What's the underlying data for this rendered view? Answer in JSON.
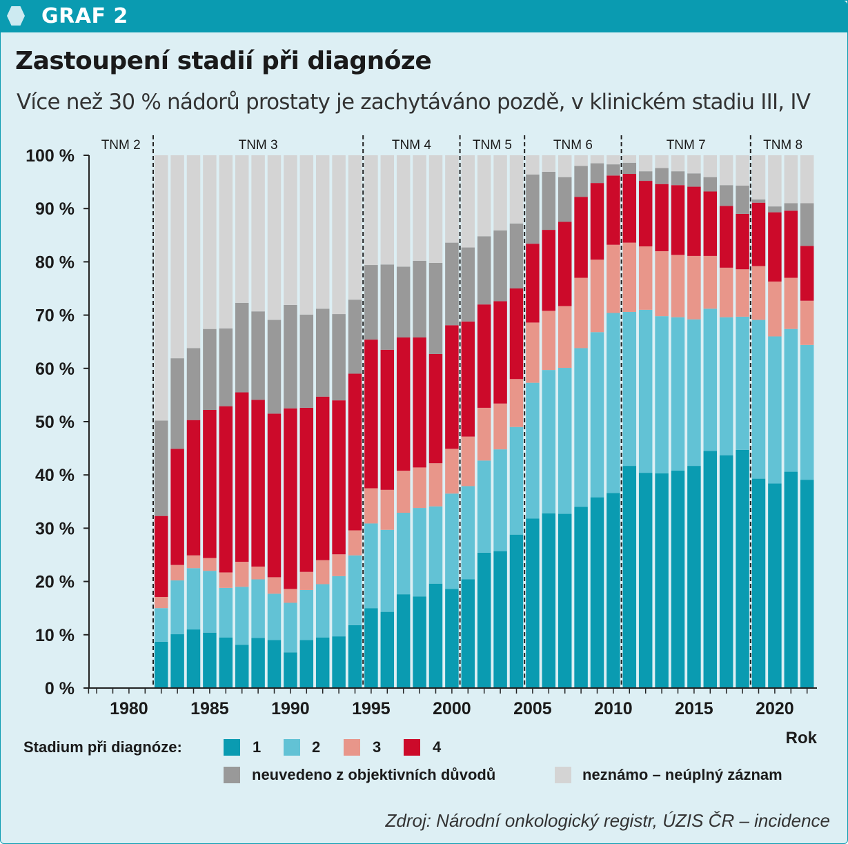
{
  "header": {
    "label": "GRAF 2"
  },
  "title": "Zastoupení stadií při diagnóze",
  "subtitle": "Více než 30 % nádorů prostaty je zachytáváno pozdě, v klinickém stadiu III, IV",
  "source": "Zdroj: Národní onkologický registr, ÚZIS ČR – incidence",
  "legend": {
    "title": "Stadium při diagnóze:",
    "items": [
      {
        "label": "1",
        "color": "#0a9bb1"
      },
      {
        "label": "2",
        "color": "#62c2d5"
      },
      {
        "label": "3",
        "color": "#e8968a"
      },
      {
        "label": "4",
        "color": "#cc0a2a"
      },
      {
        "label": "neuvedeno z objektivních důvodů",
        "color": "#999999"
      },
      {
        "label": "neznámo – neúplný záznam",
        "color": "#d4d4d4"
      }
    ]
  },
  "chart_data": {
    "type": "bar",
    "stacked": true,
    "xlabel": "Rok",
    "ylabel": "",
    "ylim": [
      0,
      100
    ],
    "y_ticks": [
      "0 %",
      "10 %",
      "20 %",
      "30 %",
      "40 %",
      "50 %",
      "60 %",
      "70 %",
      "80 %",
      "90 %",
      "100 %"
    ],
    "x_tick_labels": [
      "1980",
      "1985",
      "1990",
      "1995",
      "2000",
      "2005",
      "2010",
      "2015",
      "2020"
    ],
    "tnm_periods": [
      {
        "label": "TNM 2",
        "start": 1977.5,
        "end": 1981.5
      },
      {
        "label": "TNM 3",
        "start": 1981.5,
        "end": 1994.5
      },
      {
        "label": "TNM 4",
        "start": 1994.5,
        "end": 2000.5
      },
      {
        "label": "TNM 5",
        "start": 2000.5,
        "end": 2004.5
      },
      {
        "label": "TNM 6",
        "start": 2004.5,
        "end": 2010.5
      },
      {
        "label": "TNM 7",
        "start": 2010.5,
        "end": 2018.5
      },
      {
        "label": "TNM 8",
        "start": 2018.5,
        "end": 2022.5
      }
    ],
    "years": [
      1982,
      1983,
      1984,
      1985,
      1986,
      1987,
      1988,
      1989,
      1990,
      1991,
      1992,
      1993,
      1994,
      1995,
      1996,
      1997,
      1998,
      1999,
      2000,
      2001,
      2002,
      2003,
      2004,
      2005,
      2006,
      2007,
      2008,
      2009,
      2010,
      2011,
      2012,
      2013,
      2014,
      2015,
      2016,
      2017,
      2018,
      2019,
      2020,
      2021,
      2022
    ],
    "series": [
      {
        "name": "1",
        "color": "#0a9bb1",
        "values": [
          8.7,
          10.1,
          11.0,
          10.4,
          9.5,
          8.1,
          9.4,
          9.0,
          6.7,
          9.0,
          9.5,
          9.7,
          11.8,
          15.0,
          14.3,
          17.6,
          17.2,
          19.6,
          18.6,
          20.4,
          25.4,
          25.7,
          28.8,
          31.8,
          32.8,
          32.7,
          34.0,
          35.8,
          36.6,
          41.7,
          40.4,
          40.3,
          40.8,
          41.7,
          44.5,
          43.7,
          44.7,
          39.3,
          38.4,
          40.6,
          39.1
        ]
      },
      {
        "name": "2",
        "color": "#62c2d5",
        "values": [
          6.3,
          10.1,
          11.5,
          11.6,
          9.3,
          10.9,
          11.0,
          8.7,
          9.3,
          9.4,
          10.0,
          11.3,
          13.1,
          15.9,
          15.4,
          15.3,
          16.6,
          14.5,
          17.9,
          17.5,
          17.3,
          19.1,
          20.2,
          25.5,
          26.9,
          27.4,
          29.8,
          31.0,
          33.8,
          28.9,
          30.6,
          29.5,
          28.8,
          27.5,
          26.7,
          25.9,
          25.0,
          29.8,
          27.6,
          26.8,
          25.3
        ]
      },
      {
        "name": "3",
        "color": "#e8968a",
        "values": [
          2.1,
          2.9,
          2.4,
          2.4,
          2.9,
          4.7,
          2.4,
          3.1,
          2.6,
          3.4,
          4.5,
          4.1,
          4.7,
          6.6,
          7.5,
          7.9,
          7.6,
          8.1,
          8.4,
          9.3,
          9.9,
          8.6,
          9.0,
          11.3,
          11.1,
          11.6,
          13.2,
          13.6,
          12.8,
          13.0,
          11.9,
          12.2,
          11.7,
          11.9,
          9.9,
          9.3,
          8.9,
          10.1,
          10.3,
          9.6,
          8.3
        ]
      },
      {
        "name": "4",
        "color": "#cc0a2a",
        "values": [
          15.2,
          21.8,
          25.4,
          27.8,
          31.2,
          31.8,
          31.3,
          30.7,
          33.9,
          30.8,
          30.7,
          28.9,
          29.4,
          27.9,
          26.3,
          25.0,
          24.4,
          20.5,
          23.2,
          21.6,
          19.4,
          19.2,
          17.0,
          14.8,
          15.2,
          15.8,
          15.2,
          14.4,
          13.0,
          12.9,
          12.3,
          12.6,
          13.1,
          13.0,
          12.1,
          11.6,
          10.4,
          11.9,
          13.0,
          12.6,
          10.3
        ]
      },
      {
        "name": "neuvedeno z objektivních důvodů",
        "color": "#999999",
        "values": [
          17.9,
          17.0,
          13.5,
          15.2,
          14.6,
          16.8,
          16.6,
          17.6,
          19.4,
          17.5,
          16.5,
          16.2,
          13.9,
          14.0,
          16.0,
          13.3,
          14.4,
          17.1,
          15.5,
          13.9,
          12.8,
          13.3,
          12.2,
          13.0,
          10.9,
          8.4,
          5.8,
          3.7,
          2.1,
          2.1,
          1.8,
          3.0,
          2.6,
          2.5,
          2.7,
          3.9,
          5.3,
          0.6,
          1.1,
          1.4,
          8.0
        ]
      },
      {
        "name": "neznámo – neúplný záznam",
        "color": "#d4d4d4",
        "values": [
          49.8,
          38.1,
          36.2,
          32.6,
          32.5,
          27.7,
          29.3,
          30.9,
          28.1,
          29.9,
          28.8,
          29.8,
          27.1,
          20.6,
          20.5,
          20.9,
          19.8,
          20.2,
          16.4,
          17.3,
          15.2,
          14.1,
          12.8,
          3.6,
          3.1,
          4.1,
          2.0,
          1.5,
          1.7,
          1.4,
          3.0,
          2.4,
          3.0,
          3.4,
          4.1,
          5.6,
          5.7,
          8.3,
          9.6,
          9.0,
          9.0
        ]
      }
    ]
  }
}
